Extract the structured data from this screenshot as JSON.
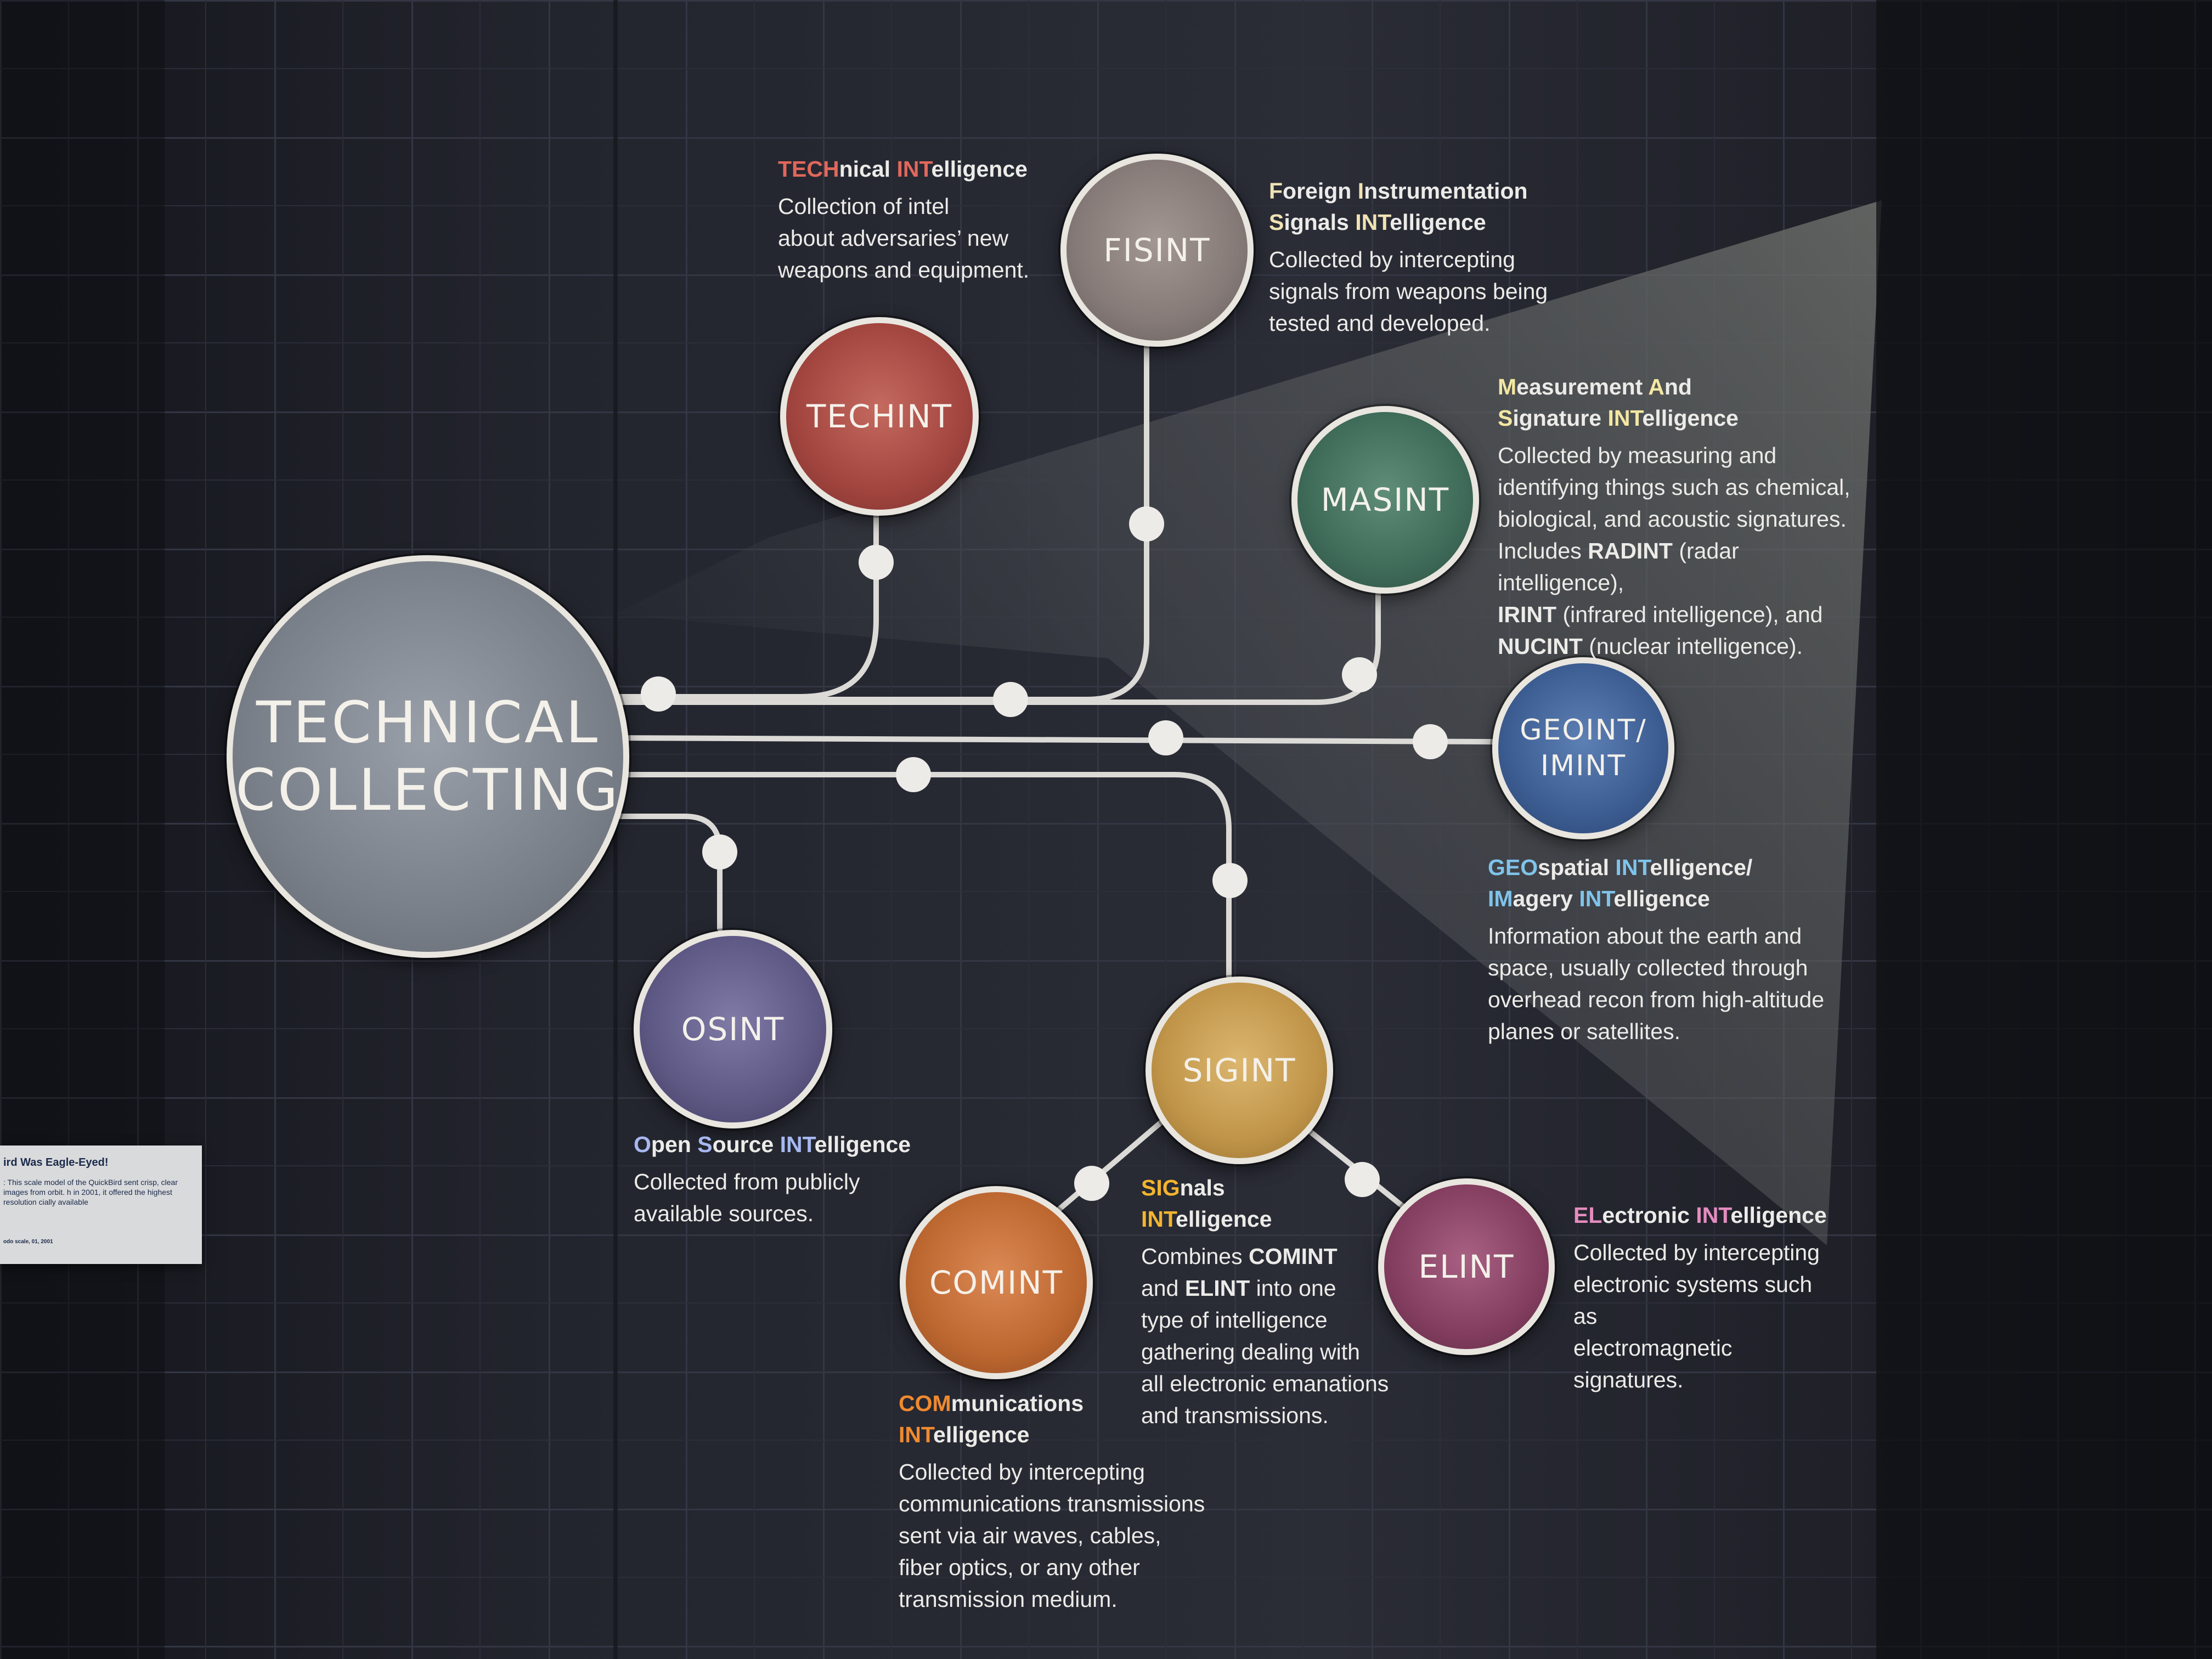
{
  "center": {
    "title_line1": "TECHNICAL",
    "title_line2": "COLLECTING"
  },
  "nodes": {
    "techint": {
      "label": "TECHINT",
      "color": "#a2453f"
    },
    "fisint": {
      "label": "FISINT",
      "color": "#857a77"
    },
    "masint": {
      "label": "MASINT",
      "color": "#3f6b59"
    },
    "geoint": {
      "label_line1": "GEOINT/",
      "label_line2": "IMINT",
      "color": "#3c5d92"
    },
    "osint": {
      "label": "OSINT",
      "color": "#5e5884"
    },
    "sigint": {
      "label": "SIGINT",
      "color": "#c09549"
    },
    "comint": {
      "label": "COMINT",
      "color": "#bd6730"
    },
    "elint": {
      "label": "ELINT",
      "color": "#843e60"
    }
  },
  "descriptions": {
    "techint": {
      "head": [
        {
          "t": "TECH",
          "acc": true
        },
        {
          "t": "nical "
        },
        {
          "t": "INT",
          "acc": true
        },
        {
          "t": "elligence"
        }
      ],
      "body": [
        "Collection of intel",
        "about adversaries’ new",
        "weapons and equipment."
      ]
    },
    "fisint": {
      "head": [
        {
          "t": "F",
          "acc": true
        },
        {
          "t": "oreign "
        },
        {
          "t": "I",
          "acc": true
        },
        {
          "t": "nstrumentation"
        },
        {
          "br": true
        },
        {
          "t": "S",
          "acc": true
        },
        {
          "t": "ignals "
        },
        {
          "t": "INT",
          "acc": true
        },
        {
          "t": "elligence"
        }
      ],
      "body": [
        "Collected by intercepting",
        "signals from weapons being",
        "tested and developed."
      ]
    },
    "masint": {
      "head": [
        {
          "t": "M",
          "acc": true
        },
        {
          "t": "easurement "
        },
        {
          "t": "A",
          "acc": true
        },
        {
          "t": "nd"
        },
        {
          "br": true
        },
        {
          "t": "S",
          "acc": true
        },
        {
          "t": "ignature "
        },
        {
          "t": "INT",
          "acc": true
        },
        {
          "t": "elligence"
        }
      ],
      "body": [
        [
          {
            "t": "Collected by measuring and"
          }
        ],
        [
          {
            "t": "identifying things such as chemical,"
          }
        ],
        [
          {
            "t": "biological, and acoustic signatures."
          }
        ],
        [
          {
            "t": "Includes "
          },
          {
            "t": "RADINT",
            "b": true
          },
          {
            "t": " (radar intelligence),"
          }
        ],
        [
          {
            "t": "IRINT",
            "b": true
          },
          {
            "t": " (infrared intelligence), and"
          }
        ],
        [
          {
            "t": "NUCINT",
            "b": true
          },
          {
            "t": " (nuclear intelligence)."
          }
        ]
      ]
    },
    "geoint": {
      "head": [
        {
          "t": "GEO",
          "acc": true
        },
        {
          "t": "spatial "
        },
        {
          "t": "INT",
          "acc": true
        },
        {
          "t": "elligence/"
        },
        {
          "br": true
        },
        {
          "t": "IM",
          "acc": true
        },
        {
          "t": "agery "
        },
        {
          "t": "INT",
          "acc": true
        },
        {
          "t": "elligence"
        }
      ],
      "body": [
        "Information about the earth and",
        "space, usually collected through",
        "overhead recon from high-altitude",
        "planes or satellites."
      ]
    },
    "osint": {
      "head": [
        {
          "t": "O",
          "acc": true
        },
        {
          "t": "pen "
        },
        {
          "t": "S",
          "acc": true
        },
        {
          "t": "ource "
        },
        {
          "t": "INT",
          "acc": true
        },
        {
          "t": "elligence"
        }
      ],
      "body": [
        "Collected from publicly",
        "available sources."
      ]
    },
    "sigint": {
      "head": [
        {
          "t": "SIG",
          "acc": true
        },
        {
          "t": "nals"
        },
        {
          "br": true
        },
        {
          "t": "INT",
          "acc": true
        },
        {
          "t": "elligence"
        }
      ],
      "body": [
        [
          {
            "t": "Combines "
          },
          {
            "t": "COMINT",
            "b": true
          }
        ],
        [
          {
            "t": "and "
          },
          {
            "t": "ELINT",
            "b": true
          },
          {
            "t": " into one"
          }
        ],
        [
          {
            "t": "type of intelligence"
          }
        ],
        [
          {
            "t": "gathering dealing with"
          }
        ],
        [
          {
            "t": "all electronic emanations"
          }
        ],
        [
          {
            "t": "and transmissions."
          }
        ]
      ]
    },
    "comint": {
      "head": [
        {
          "t": "COM",
          "acc": true
        },
        {
          "t": "munications"
        },
        {
          "br": true
        },
        {
          "t": "INT",
          "acc": true
        },
        {
          "t": "elligence"
        }
      ],
      "body": [
        "Collected by intercepting",
        "communications transmissions",
        "sent via air waves, cables,",
        "fiber optics, or any other",
        "transmission medium."
      ]
    },
    "elint": {
      "head": [
        {
          "t": "EL",
          "acc": true
        },
        {
          "t": "ectronic "
        },
        {
          "t": "INT",
          "acc": true
        },
        {
          "t": "elligence"
        }
      ],
      "body": [
        "Collected by intercepting",
        "electronic systems such as",
        "electromagnetic signatures."
      ]
    }
  },
  "plaque": {
    "title": "ird Was Eagle-Eyed!",
    "body": ": This scale model of the QuickBird sent crisp, clear images from orbit. h in 2001, it offered the highest resolution cially available",
    "credit": "odo scale, 01, 2001"
  }
}
